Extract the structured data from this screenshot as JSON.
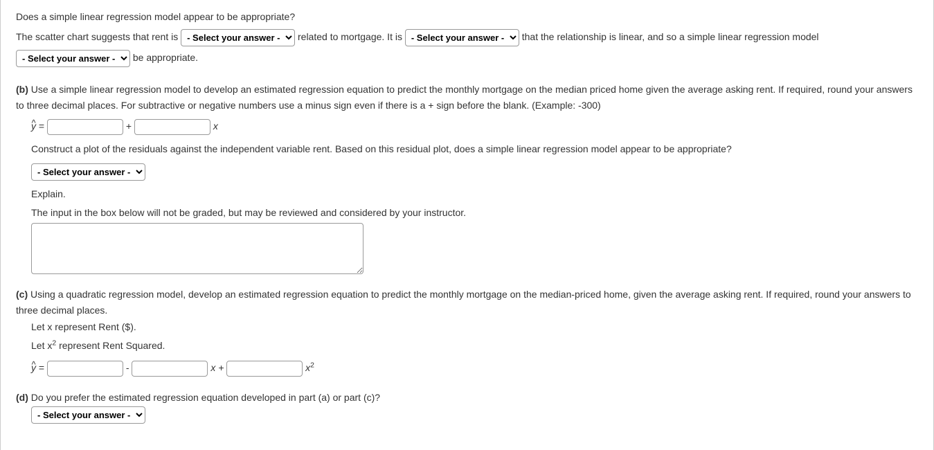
{
  "intro": {
    "question": "Does a simple linear regression model appear to be appropriate?",
    "text1": "The scatter chart suggests that rent is ",
    "text2": " related to mortgage. It is ",
    "text3": " that the relationship is linear, and so a simple linear regression model ",
    "text4": " be appropriate.",
    "select_placeholder": "- Select your answer -"
  },
  "part_b": {
    "label": "(b)",
    "prompt": "Use a simple linear regression model to develop an estimated regression equation to predict the monthly mortgage on the median priced home given the average asking rent. If required, round your answers to three decimal places. For subtractive or negative numbers use a minus sign even if there is a + sign before the blank. (Example: -300)",
    "eq_lhs": "y",
    "eq_eq": " = ",
    "eq_plus": " + ",
    "eq_x": " x",
    "residual_prompt": "Construct a plot of the residuals against the independent variable rent. Based on this residual plot, does a simple linear regression model appear to be appropriate?",
    "explain_label": "Explain.",
    "explain_note": "The input in the box below will not be graded, but may be reviewed and considered by your instructor."
  },
  "part_c": {
    "label": "(c)",
    "prompt": "Using a quadratic regression model, develop an estimated regression equation to predict the monthly mortgage on the median-priced home, given the average asking rent. If required, round your answers to three decimal places.",
    "let1_pre": "Let ",
    "let1_var": "x",
    "let1_post": " represent Rent ($).",
    "let2_pre": "Let ",
    "let2_var": "x",
    "let2_post": " represent Rent Squared.",
    "eq_lhs": "y",
    "eq_eq": " = ",
    "eq_minus": " - ",
    "eq_x_plus": " x + ",
    "eq_x2_var": "x"
  },
  "part_d": {
    "label": "(d)",
    "prompt": "Do you prefer the estimated regression equation developed in part (a) or part (c)?"
  },
  "select_placeholder": "- Select your answer -"
}
